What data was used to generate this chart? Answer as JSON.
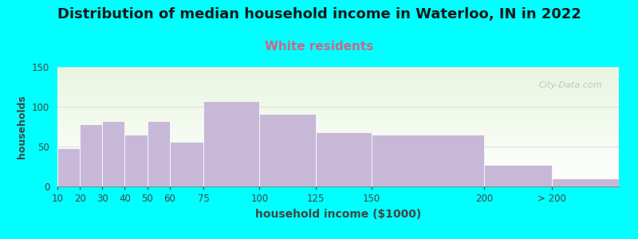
{
  "title": "Distribution of median household income in Waterloo, IN in 2022",
  "subtitle": "White residents",
  "xlabel": "household income ($1000)",
  "ylabel": "households",
  "title_fontsize": 13,
  "subtitle_fontsize": 11,
  "subtitle_color": "#cc6688",
  "bar_color": "#c8b8d8",
  "bar_edge_color": "#ffffff",
  "background_outer": "#00ffff",
  "background_inner_top": "#e8f5e0",
  "background_inner_bottom": "#ffffff",
  "bin_edges": [
    10,
    20,
    30,
    40,
    50,
    60,
    75,
    100,
    125,
    150,
    200,
    230,
    260
  ],
  "values": [
    48,
    78,
    82,
    65,
    82,
    56,
    107,
    91,
    68,
    65,
    27,
    10
  ],
  "tick_labels": [
    "10",
    "20",
    "30",
    "40",
    "50",
    "60",
    "75",
    "100",
    "125",
    "150",
    "200",
    "> 200"
  ],
  "ylim": [
    0,
    150
  ],
  "yticks": [
    0,
    50,
    100,
    150
  ],
  "grid_color": "#e0e0e0",
  "watermark": "City-Data.com"
}
